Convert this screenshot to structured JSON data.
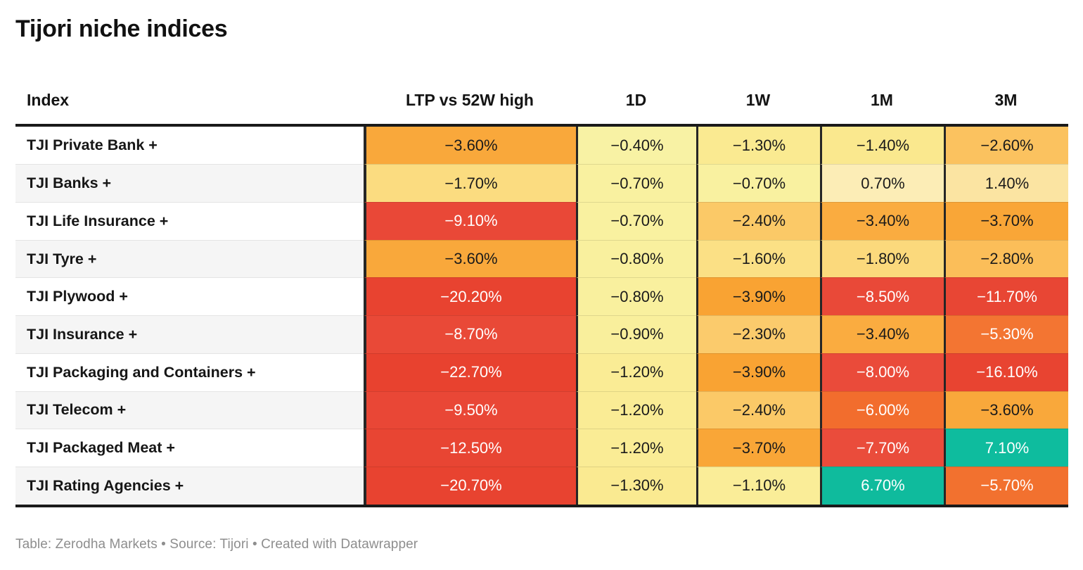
{
  "title": "Tijori niche indices",
  "footer": {
    "text": "Table: Zerodha Markets • Source: Tijori • Created with Datawrapper"
  },
  "palette": {
    "negative_large": "#E84330",
    "negative_medium": "#F26D2D",
    "negative_small": "#F9F1A0",
    "positive_small": "#FCEDB6",
    "positive_large": "#0FBB9D",
    "border_dark": "#1a1a1a",
    "stripe_gray": "#f5f5f5"
  },
  "table": {
    "columns": [
      "Index",
      "LTP vs 52W high",
      "1D",
      "1W",
      "1M",
      "3M"
    ],
    "rows": [
      {
        "index": "TJI Private Bank +",
        "cells": [
          {
            "v": "−3.60%",
            "bg": "#F9A83B",
            "fg": "#1a1a1a"
          },
          {
            "v": "−0.40%",
            "bg": "#F8F2A4",
            "fg": "#1a1a1a"
          },
          {
            "v": "−1.30%",
            "bg": "#FAEA91",
            "fg": "#1a1a1a"
          },
          {
            "v": "−1.40%",
            "bg": "#FAE88E",
            "fg": "#1a1a1a"
          },
          {
            "v": "−2.60%",
            "bg": "#FBC25F",
            "fg": "#1a1a1a"
          }
        ]
      },
      {
        "index": "TJI Banks +",
        "cells": [
          {
            "v": "−1.70%",
            "bg": "#FBDC80",
            "fg": "#1a1a1a"
          },
          {
            "v": "−0.70%",
            "bg": "#F9F1A0",
            "fg": "#1a1a1a"
          },
          {
            "v": "−0.70%",
            "bg": "#F9F1A0",
            "fg": "#1a1a1a"
          },
          {
            "v": "0.70%",
            "bg": "#FCEDB6",
            "fg": "#1a1a1a"
          },
          {
            "v": "1.40%",
            "bg": "#FBE4A2",
            "fg": "#1a1a1a"
          }
        ]
      },
      {
        "index": "TJI Life Insurance +",
        "cells": [
          {
            "v": "−9.10%",
            "bg": "#E94837",
            "fg": "#ffffff"
          },
          {
            "v": "−0.70%",
            "bg": "#F9F1A0",
            "fg": "#1a1a1a"
          },
          {
            "v": "−2.40%",
            "bg": "#FBC967",
            "fg": "#1a1a1a"
          },
          {
            "v": "−3.40%",
            "bg": "#FAAC40",
            "fg": "#1a1a1a"
          },
          {
            "v": "−3.70%",
            "bg": "#F9A637",
            "fg": "#1a1a1a"
          }
        ]
      },
      {
        "index": "TJI Tyre +",
        "cells": [
          {
            "v": "−3.60%",
            "bg": "#F9A83B",
            "fg": "#1a1a1a"
          },
          {
            "v": "−0.80%",
            "bg": "#F9F09E",
            "fg": "#1a1a1a"
          },
          {
            "v": "−1.60%",
            "bg": "#FBE085",
            "fg": "#1a1a1a"
          },
          {
            "v": "−1.80%",
            "bg": "#FBD97C",
            "fg": "#1a1a1a"
          },
          {
            "v": "−2.80%",
            "bg": "#FBBE59",
            "fg": "#1a1a1a"
          }
        ]
      },
      {
        "index": "TJI Plywood +",
        "cells": [
          {
            "v": "−20.20%",
            "bg": "#E84330",
            "fg": "#ffffff"
          },
          {
            "v": "−0.80%",
            "bg": "#F9F09E",
            "fg": "#1a1a1a"
          },
          {
            "v": "−3.90%",
            "bg": "#F9A333",
            "fg": "#1a1a1a"
          },
          {
            "v": "−8.50%",
            "bg": "#E94938",
            "fg": "#ffffff"
          },
          {
            "v": "−11.70%",
            "bg": "#E84634",
            "fg": "#ffffff"
          }
        ]
      },
      {
        "index": "TJI Insurance +",
        "cells": [
          {
            "v": "−8.70%",
            "bg": "#E94937",
            "fg": "#ffffff"
          },
          {
            "v": "−0.90%",
            "bg": "#F9EF9C",
            "fg": "#1a1a1a"
          },
          {
            "v": "−2.30%",
            "bg": "#FBCB6C",
            "fg": "#1a1a1a"
          },
          {
            "v": "−3.40%",
            "bg": "#FAAC40",
            "fg": "#1a1a1a"
          },
          {
            "v": "−5.30%",
            "bg": "#F37532",
            "fg": "#ffffff"
          }
        ]
      },
      {
        "index": "TJI Packaging and Containers +",
        "cells": [
          {
            "v": "−22.70%",
            "bg": "#E8422F",
            "fg": "#ffffff"
          },
          {
            "v": "−1.20%",
            "bg": "#FAEC95",
            "fg": "#1a1a1a"
          },
          {
            "v": "−3.90%",
            "bg": "#F9A333",
            "fg": "#1a1a1a"
          },
          {
            "v": "−8.00%",
            "bg": "#EA4B3A",
            "fg": "#ffffff"
          },
          {
            "v": "−16.10%",
            "bg": "#E84431",
            "fg": "#ffffff"
          }
        ]
      },
      {
        "index": "TJI Telecom +",
        "cells": [
          {
            "v": "−9.50%",
            "bg": "#E94736",
            "fg": "#ffffff"
          },
          {
            "v": "−1.20%",
            "bg": "#FAEC95",
            "fg": "#1a1a1a"
          },
          {
            "v": "−2.40%",
            "bg": "#FBC967",
            "fg": "#1a1a1a"
          },
          {
            "v": "−6.00%",
            "bg": "#F26D2D",
            "fg": "#ffffff"
          },
          {
            "v": "−3.60%",
            "bg": "#F9A83B",
            "fg": "#1a1a1a"
          }
        ]
      },
      {
        "index": "TJI Packaged Meat +",
        "cells": [
          {
            "v": "−12.50%",
            "bg": "#E84533",
            "fg": "#ffffff"
          },
          {
            "v": "−1.20%",
            "bg": "#FAEC95",
            "fg": "#1a1a1a"
          },
          {
            "v": "−3.70%",
            "bg": "#F9A637",
            "fg": "#1a1a1a"
          },
          {
            "v": "−7.70%",
            "bg": "#EA4C3B",
            "fg": "#ffffff"
          },
          {
            "v": "7.10%",
            "bg": "#0EBC9E",
            "fg": "#ffffff"
          }
        ]
      },
      {
        "index": "TJI Rating Agencies +",
        "cells": [
          {
            "v": "−20.70%",
            "bg": "#E84330",
            "fg": "#ffffff"
          },
          {
            "v": "−1.30%",
            "bg": "#FAEA91",
            "fg": "#1a1a1a"
          },
          {
            "v": "−1.10%",
            "bg": "#FAED98",
            "fg": "#1a1a1a"
          },
          {
            "v": "6.70%",
            "bg": "#0FBB9D",
            "fg": "#ffffff"
          },
          {
            "v": "−5.70%",
            "bg": "#F2712F",
            "fg": "#ffffff"
          }
        ]
      }
    ]
  },
  "chart_data": {
    "type": "table",
    "title": "Tijori niche indices",
    "columns": [
      "Index",
      "LTP vs 52W high",
      "1D",
      "1W",
      "1M",
      "3M"
    ],
    "rows": [
      [
        "TJI Private Bank +",
        -3.6,
        -0.4,
        -1.3,
        -1.4,
        -2.6
      ],
      [
        "TJI Banks +",
        -1.7,
        -0.7,
        -0.7,
        0.7,
        1.4
      ],
      [
        "TJI Life Insurance +",
        -9.1,
        -0.7,
        -2.4,
        -3.4,
        -3.7
      ],
      [
        "TJI Tyre +",
        -3.6,
        -0.8,
        -1.6,
        -1.8,
        -2.8
      ],
      [
        "TJI Plywood +",
        -20.2,
        -0.8,
        -3.9,
        -8.5,
        -11.7
      ],
      [
        "TJI Insurance +",
        -8.7,
        -0.9,
        -2.3,
        -3.4,
        -5.3
      ],
      [
        "TJI Packaging and Containers +",
        -22.7,
        -1.2,
        -3.9,
        -8.0,
        -16.1
      ],
      [
        "TJI Telecom +",
        -9.5,
        -1.2,
        -2.4,
        -6.0,
        -3.6
      ],
      [
        "TJI Packaged Meat +",
        -12.5,
        -1.2,
        -3.7,
        -7.7,
        7.1
      ],
      [
        "TJI Rating Agencies +",
        -20.7,
        -1.3,
        -1.1,
        6.7,
        -5.7
      ]
    ],
    "units": "percent",
    "heatmap": "red = large negative, yellow = small change, teal = large positive",
    "footer": "Table: Zerodha Markets • Source: Tijori • Created with Datawrapper"
  }
}
